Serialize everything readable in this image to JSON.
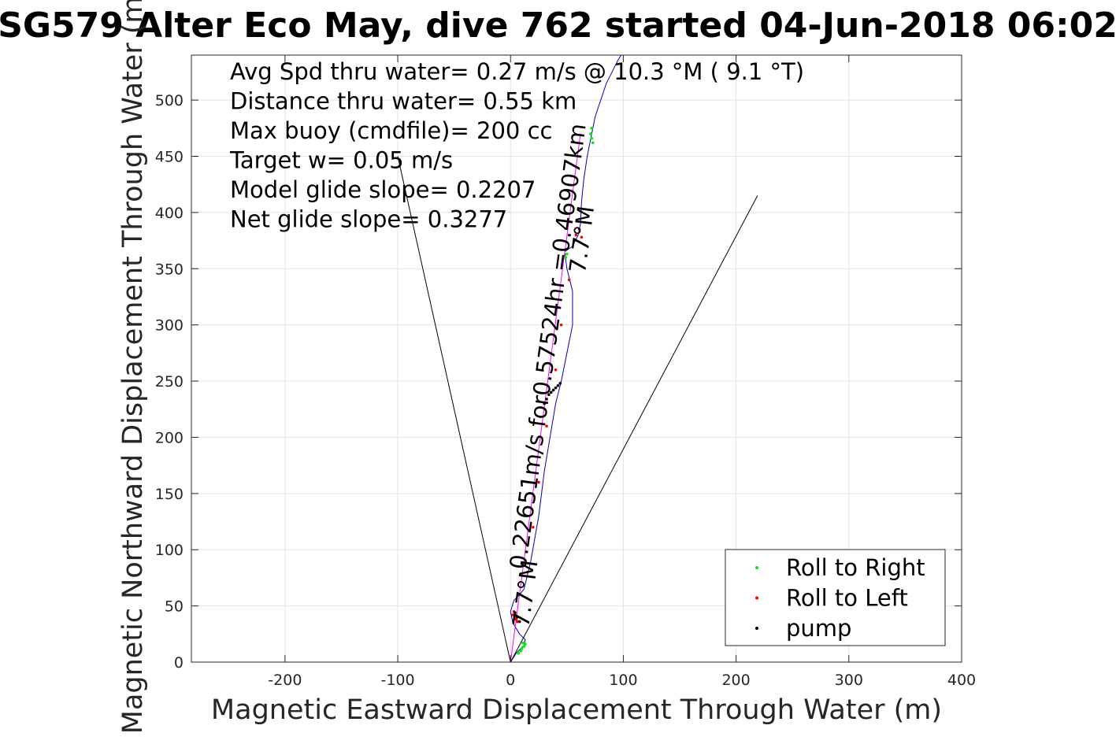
{
  "chart_data": {
    "type": "line",
    "title": "SG579 Alter Eco May, dive 762 started 04-Jun-2018 06:02",
    "xlabel": "Magnetic Eastward Displacement Through Water (m)",
    "ylabel": "Magnetic Northward Displacement Through Water (m)",
    "xlim": [
      -283,
      400
    ],
    "ylim": [
      0,
      540
    ],
    "xticks": [
      -200,
      -100,
      0,
      100,
      200,
      300,
      400
    ],
    "yticks": [
      0,
      50,
      100,
      150,
      200,
      250,
      300,
      350,
      400,
      450,
      500
    ],
    "xtick_labels": [
      "-200",
      "-100",
      "0",
      "100",
      "200",
      "300",
      "400"
    ],
    "ytick_labels": [
      "0",
      "50",
      "100",
      "150",
      "200",
      "250",
      "300",
      "350",
      "400",
      "450",
      "500"
    ],
    "grid": true,
    "legend_position": "bottom-right",
    "annotations": [
      "Avg Spd thru water=  0.27 m/s @  10.3 °M (  9.1 °T)",
      "Distance thru water=  0.55 km",
      "Max buoy (cmdfile)= 200 cc",
      "Target w= 0.05 m/s",
      "Model glide slope= 0.2207",
      "Net glide slope= 0.3277"
    ],
    "rotated_labels": [
      {
        "text": "0.22651m/s for0.57524hr =0.46907km",
        "x": 40,
        "y": 280,
        "angle_deg": 82.3
      },
      {
        "text": "7.7°M",
        "x": 20,
        "y": 60,
        "angle_deg": 82.3
      },
      {
        "text": "7.7°M",
        "x": 70,
        "y": 375,
        "angle_deg": 82.3
      }
    ],
    "series": [
      {
        "role": "track",
        "color": "#0000bb",
        "x": [
          0,
          5,
          12,
          13,
          8,
          2,
          0,
          3,
          8,
          12,
          18,
          25,
          30,
          35,
          40,
          45,
          50,
          55,
          55,
          50,
          48,
          55,
          60,
          62,
          63,
          65,
          68,
          72,
          75,
          80,
          85,
          90,
          95,
          101
        ],
        "y": [
          0,
          8,
          15,
          20,
          25,
          35,
          45,
          55,
          60,
          65,
          90,
          130,
          170,
          200,
          230,
          250,
          275,
          300,
          330,
          350,
          365,
          370,
          380,
          390,
          410,
          430,
          450,
          470,
          485,
          500,
          515,
          525,
          535,
          545
        ]
      },
      {
        "role": "heading-line",
        "color": "#ff00ff",
        "x": [
          0,
          62
        ],
        "y": [
          0,
          470
        ]
      },
      {
        "role": "glide-cone-left",
        "color": "#000000",
        "x": [
          0,
          -100
        ],
        "y": [
          0,
          450
        ]
      },
      {
        "role": "glide-cone-right",
        "color": "#000000",
        "x": [
          0,
          219
        ],
        "y": [
          0,
          415
        ]
      },
      {
        "name": "Roll to Right",
        "color": "#00ee00",
        "marker": "dot",
        "x": [
          10,
          12,
          13,
          11,
          9,
          7,
          49,
          50,
          71,
          72,
          73,
          72
        ],
        "y": [
          12,
          14,
          16,
          17,
          10,
          8,
          360,
          363,
          470,
          466,
          462,
          475
        ]
      },
      {
        "name": "Roll to Left",
        "color": "#ff0000",
        "marker": "dot",
        "x": [
          2,
          3,
          4,
          5,
          6,
          15,
          20,
          25,
          32,
          40,
          45,
          52,
          58,
          61,
          63
        ],
        "y": [
          42,
          45,
          40,
          38,
          36,
          80,
          120,
          160,
          210,
          260,
          300,
          340,
          380,
          385,
          378
        ]
      },
      {
        "name": "pump",
        "color": "#000000",
        "marker": "dot",
        "x": [
          30,
          32,
          34,
          36,
          38,
          40,
          42,
          44,
          4,
          6,
          8
        ],
        "y": [
          230,
          234,
          238,
          240,
          242,
          244,
          246,
          248,
          44,
          40,
          36
        ]
      }
    ]
  }
}
